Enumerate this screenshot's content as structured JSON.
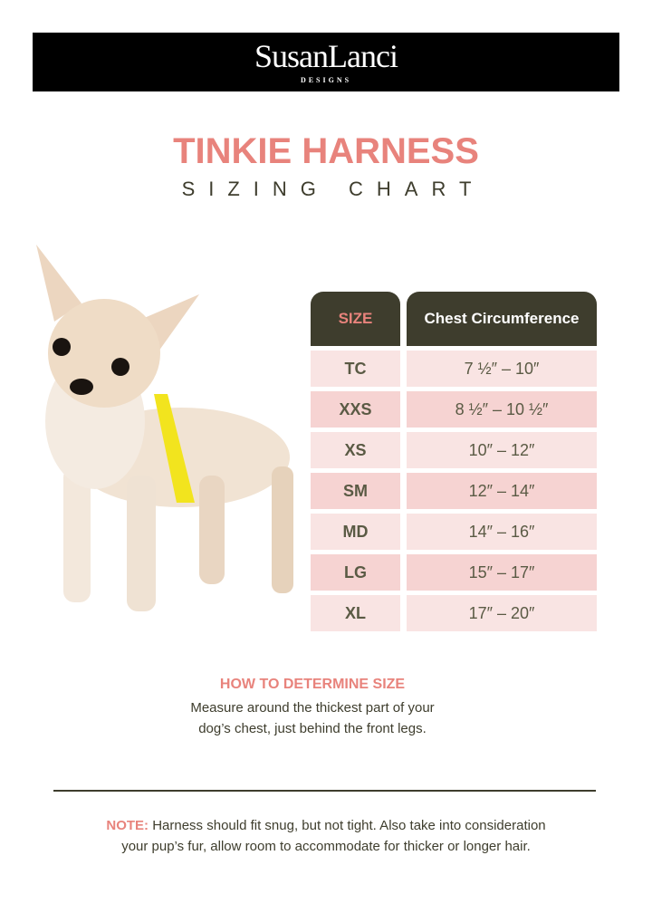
{
  "brand": {
    "name": "SusanLanci",
    "sub": "DESIGNS"
  },
  "title": "TINKIE HARNESS",
  "subtitle": "SIZING CHART",
  "table": {
    "headers": [
      "SIZE",
      "Chest Circumference"
    ],
    "rows": [
      {
        "size": "TC",
        "chest": "7 ½″ – 10″"
      },
      {
        "size": "XXS",
        "chest": "8 ½″ – 10 ½″"
      },
      {
        "size": "XS",
        "chest": "10″ – 12″"
      },
      {
        "size": "SM",
        "chest": "12″ – 14″"
      },
      {
        "size": "MD",
        "chest": "14″ – 16″"
      },
      {
        "size": "LG",
        "chest": "15″ – 17″"
      },
      {
        "size": "XL",
        "chest": "17″ – 20″"
      }
    ]
  },
  "how": {
    "heading": "HOW TO DETERMINE SIZE",
    "line1": "Measure around the thickest part of your",
    "line2": "dog’s chest, just behind the front legs."
  },
  "note": {
    "label": "NOTE:",
    "line1": " Harness should fit snug, but not tight. Also take into consideration",
    "line2": "your pup’s fur, allow room to accommodate for thicker or longer hair."
  },
  "colors": {
    "pink": "#e8837c",
    "dark": "#3e3d2d",
    "rowLight": "#f9e4e3",
    "rowDark": "#f6d3d2"
  }
}
